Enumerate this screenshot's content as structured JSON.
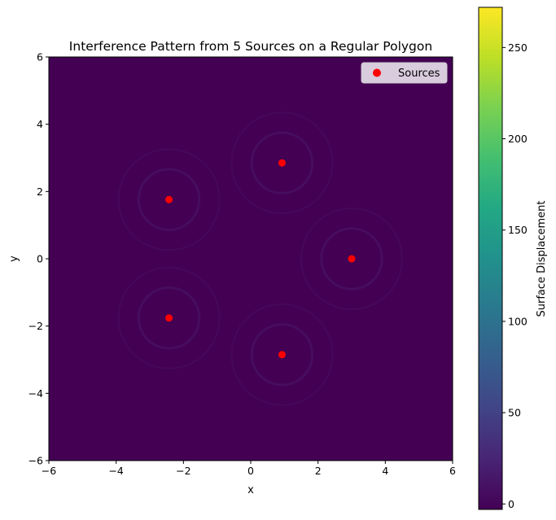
{
  "chart_data": {
    "type": "heatmap",
    "title": "Interference Pattern from 5 Sources on a Regular Polygon",
    "xlabel": "x",
    "ylabel": "y",
    "xlim": [
      -6,
      6
    ],
    "ylim": [
      -6,
      6
    ],
    "xticks": [
      -6,
      -4,
      -2,
      0,
      2,
      4,
      6
    ],
    "yticks": [
      -6,
      -4,
      -2,
      0,
      2,
      4,
      6
    ],
    "grid": false,
    "colormap": "viridis",
    "background_color": "#440154",
    "colorbar": {
      "label": "Surface Displacement",
      "range": [
        -3,
        272
      ],
      "ticks": [
        0,
        50,
        100,
        150,
        200,
        250
      ]
    },
    "series": [
      {
        "name": "Sources",
        "type": "scatter",
        "color": "#ff0000",
        "points": [
          {
            "x": 3.0,
            "y": 0.0
          },
          {
            "x": 0.93,
            "y": 2.85
          },
          {
            "x": -2.43,
            "y": 1.76
          },
          {
            "x": -2.43,
            "y": -1.76
          },
          {
            "x": 0.93,
            "y": -2.85
          }
        ]
      }
    ],
    "legend": {
      "placement": "top-right",
      "entries": [
        "Sources"
      ]
    }
  }
}
